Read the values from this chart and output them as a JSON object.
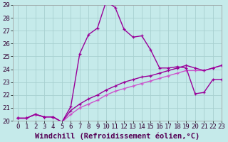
{
  "xlabel": "Windchill (Refroidissement éolien,°C)",
  "bg_color": "#c5eaea",
  "grid_color": "#a8d0d0",
  "line_color1": "#990099",
  "line_color2": "#cc55cc",
  "curve1_y": [
    20.2,
    20.2,
    20.5,
    20.3,
    20.3,
    19.9,
    21.1,
    25.2,
    26.7,
    27.2,
    29.3,
    28.8,
    27.1,
    26.5,
    26.6,
    25.5,
    24.1,
    24.1,
    24.2,
    24.1,
    22.1,
    22.2,
    23.2,
    23.2
  ],
  "curve2_y": [
    20.2,
    20.2,
    20.5,
    20.3,
    20.3,
    19.9,
    20.5,
    21.0,
    21.3,
    21.6,
    22.0,
    22.3,
    22.5,
    22.7,
    22.9,
    23.1,
    23.3,
    23.5,
    23.7,
    23.9,
    23.9,
    23.9,
    24.1,
    24.3
  ],
  "curve3_y": [
    20.2,
    20.2,
    20.5,
    20.3,
    20.3,
    19.9,
    20.8,
    21.3,
    21.7,
    22.0,
    22.4,
    22.7,
    23.0,
    23.2,
    23.4,
    23.5,
    23.7,
    23.9,
    24.1,
    24.3,
    24.1,
    23.9,
    24.1,
    24.3
  ],
  "ylim": [
    20,
    29
  ],
  "xlim": [
    -0.5,
    23
  ],
  "yticks": [
    20,
    21,
    22,
    23,
    24,
    25,
    26,
    27,
    28,
    29
  ],
  "xticks": [
    0,
    1,
    2,
    3,
    4,
    5,
    6,
    7,
    8,
    9,
    10,
    11,
    12,
    13,
    14,
    15,
    16,
    17,
    18,
    19,
    20,
    21,
    22,
    23
  ],
  "xlabel_fontsize": 7.5,
  "tick_fontsize": 6.5,
  "linewidth": 1.0,
  "markersize": 3.5
}
